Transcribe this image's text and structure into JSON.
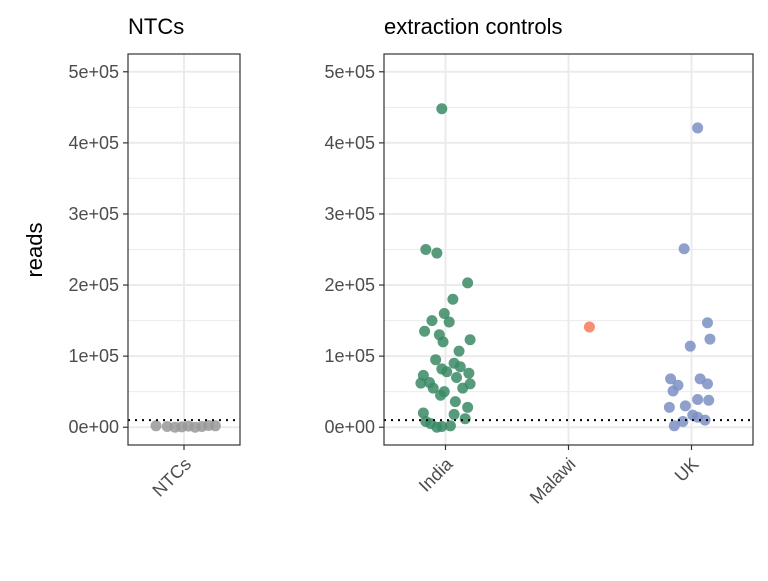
{
  "chart_data": [
    {
      "type": "scatter",
      "title": "NTCs",
      "xlabel": "",
      "ylabel": "reads",
      "categories": [
        "NTCs"
      ],
      "ylim": [
        -25000,
        525000
      ],
      "yticks": [
        "0e+00",
        "1e+05",
        "2e+05",
        "3e+05",
        "4e+05",
        "5e+05"
      ],
      "ytick_values": [
        0,
        100000,
        200000,
        300000,
        400000,
        500000
      ],
      "threshold": 10000,
      "grid": true,
      "points": [
        {
          "category": "NTCs",
          "offset": -0.25,
          "y": 2000,
          "color": "#999999"
        },
        {
          "category": "NTCs",
          "offset": -0.15,
          "y": 1000,
          "color": "#999999"
        },
        {
          "category": "NTCs",
          "offset": -0.08,
          "y": 0,
          "color": "#999999"
        },
        {
          "category": "NTCs",
          "offset": -0.02,
          "y": 500,
          "color": "#999999"
        },
        {
          "category": "NTCs",
          "offset": 0.04,
          "y": 1500,
          "color": "#999999"
        },
        {
          "category": "NTCs",
          "offset": 0.1,
          "y": 0,
          "color": "#999999"
        },
        {
          "category": "NTCs",
          "offset": 0.16,
          "y": 1000,
          "color": "#999999"
        },
        {
          "category": "NTCs",
          "offset": 0.22,
          "y": 2500,
          "color": "#999999"
        },
        {
          "category": "NTCs",
          "offset": 0.28,
          "y": 2000,
          "color": "#999999"
        }
      ]
    },
    {
      "type": "scatter",
      "title": "extraction controls",
      "xlabel": "",
      "ylabel": "",
      "categories": [
        "India",
        "Malawi",
        "UK"
      ],
      "ylim": [
        -25000,
        525000
      ],
      "yticks": [
        "0e+00",
        "1e+05",
        "2e+05",
        "3e+05",
        "4e+05",
        "5e+05"
      ],
      "ytick_values": [
        0,
        100000,
        200000,
        300000,
        400000,
        500000
      ],
      "threshold": 10000,
      "grid": true,
      "series_colors": {
        "India": "#3a8a65",
        "Malawi": "#f6795a",
        "UK": "#7b8fc4"
      },
      "points": [
        {
          "category": "India",
          "offset": -0.03,
          "y": 448000
        },
        {
          "category": "India",
          "offset": -0.16,
          "y": 250000
        },
        {
          "category": "India",
          "offset": -0.07,
          "y": 245000
        },
        {
          "category": "India",
          "offset": 0.18,
          "y": 203000
        },
        {
          "category": "India",
          "offset": 0.06,
          "y": 180000
        },
        {
          "category": "India",
          "offset": -0.01,
          "y": 160000
        },
        {
          "category": "India",
          "offset": -0.11,
          "y": 150000
        },
        {
          "category": "India",
          "offset": 0.03,
          "y": 148000
        },
        {
          "category": "India",
          "offset": -0.17,
          "y": 135000
        },
        {
          "category": "India",
          "offset": -0.05,
          "y": 130000
        },
        {
          "category": "India",
          "offset": 0.2,
          "y": 123000
        },
        {
          "category": "India",
          "offset": -0.02,
          "y": 120000
        },
        {
          "category": "India",
          "offset": 0.11,
          "y": 107000
        },
        {
          "category": "India",
          "offset": -0.08,
          "y": 95000
        },
        {
          "category": "India",
          "offset": 0.07,
          "y": 90000
        },
        {
          "category": "India",
          "offset": -0.03,
          "y": 82000
        },
        {
          "category": "India",
          "offset": 0.12,
          "y": 85000
        },
        {
          "category": "India",
          "offset": 0.01,
          "y": 78000
        },
        {
          "category": "India",
          "offset": 0.19,
          "y": 76000
        },
        {
          "category": "India",
          "offset": -0.18,
          "y": 73000
        },
        {
          "category": "India",
          "offset": 0.09,
          "y": 70000
        },
        {
          "category": "India",
          "offset": -0.2,
          "y": 62000
        },
        {
          "category": "India",
          "offset": -0.13,
          "y": 63000
        },
        {
          "category": "India",
          "offset": 0.2,
          "y": 61000
        },
        {
          "category": "India",
          "offset": -0.1,
          "y": 55000
        },
        {
          "category": "India",
          "offset": 0.14,
          "y": 55000
        },
        {
          "category": "India",
          "offset": -0.01,
          "y": 50000
        },
        {
          "category": "India",
          "offset": -0.04,
          "y": 45000
        },
        {
          "category": "India",
          "offset": 0.08,
          "y": 36000
        },
        {
          "category": "India",
          "offset": 0.18,
          "y": 28000
        },
        {
          "category": "India",
          "offset": -0.18,
          "y": 20000
        },
        {
          "category": "India",
          "offset": 0.07,
          "y": 18000
        },
        {
          "category": "India",
          "offset": 0.16,
          "y": 12000
        },
        {
          "category": "India",
          "offset": -0.16,
          "y": 8000
        },
        {
          "category": "India",
          "offset": -0.12,
          "y": 5000
        },
        {
          "category": "India",
          "offset": -0.03,
          "y": 1000
        },
        {
          "category": "India",
          "offset": 0.04,
          "y": 2000
        },
        {
          "category": "India",
          "offset": -0.07,
          "y": 0
        },
        {
          "category": "Malawi",
          "offset": 0.17,
          "y": 141000
        },
        {
          "category": "UK",
          "offset": 0.05,
          "y": 421000
        },
        {
          "category": "UK",
          "offset": -0.06,
          "y": 251000
        },
        {
          "category": "UK",
          "offset": 0.13,
          "y": 147000
        },
        {
          "category": "UK",
          "offset": 0.15,
          "y": 124000
        },
        {
          "category": "UK",
          "offset": -0.01,
          "y": 114000
        },
        {
          "category": "UK",
          "offset": -0.17,
          "y": 68000
        },
        {
          "category": "UK",
          "offset": 0.07,
          "y": 68000
        },
        {
          "category": "UK",
          "offset": 0.13,
          "y": 61000
        },
        {
          "category": "UK",
          "offset": -0.11,
          "y": 59000
        },
        {
          "category": "UK",
          "offset": -0.15,
          "y": 51000
        },
        {
          "category": "UK",
          "offset": 0.05,
          "y": 39000
        },
        {
          "category": "UK",
          "offset": 0.14,
          "y": 38000
        },
        {
          "category": "UK",
          "offset": -0.05,
          "y": 30000
        },
        {
          "category": "UK",
          "offset": -0.18,
          "y": 28000
        },
        {
          "category": "UK",
          "offset": 0.01,
          "y": 17000
        },
        {
          "category": "UK",
          "offset": 0.05,
          "y": 14000
        },
        {
          "category": "UK",
          "offset": -0.07,
          "y": 8000
        },
        {
          "category": "UK",
          "offset": 0.11,
          "y": 10000
        },
        {
          "category": "UK",
          "offset": -0.14,
          "y": 2000
        }
      ]
    }
  ]
}
